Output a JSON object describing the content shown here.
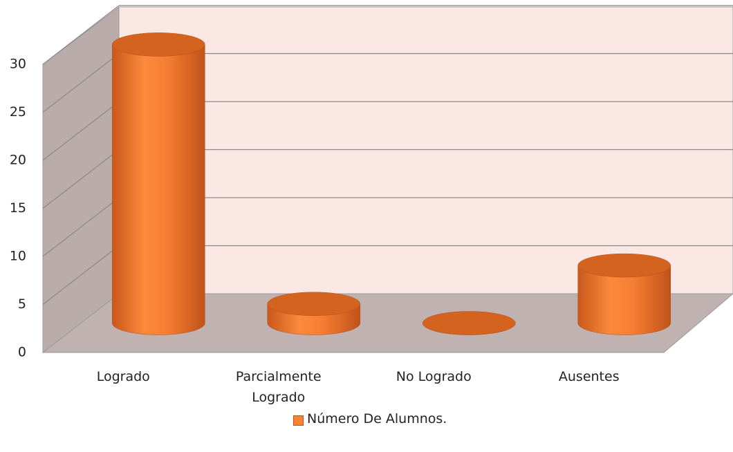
{
  "chart_data": {
    "type": "bar3d",
    "categories": [
      "Logrado",
      "Parcialmente Logrado",
      "No Logrado",
      "Ausentes"
    ],
    "series": [
      {
        "name": "Número De Alumnos.",
        "color": "#f68434",
        "values": [
          29,
          2,
          0,
          6
        ]
      }
    ],
    "ylim": [
      0,
      30
    ],
    "yticks": [
      0,
      5,
      10,
      15,
      20,
      25,
      30
    ],
    "grid": true,
    "legend": "bottom"
  }
}
